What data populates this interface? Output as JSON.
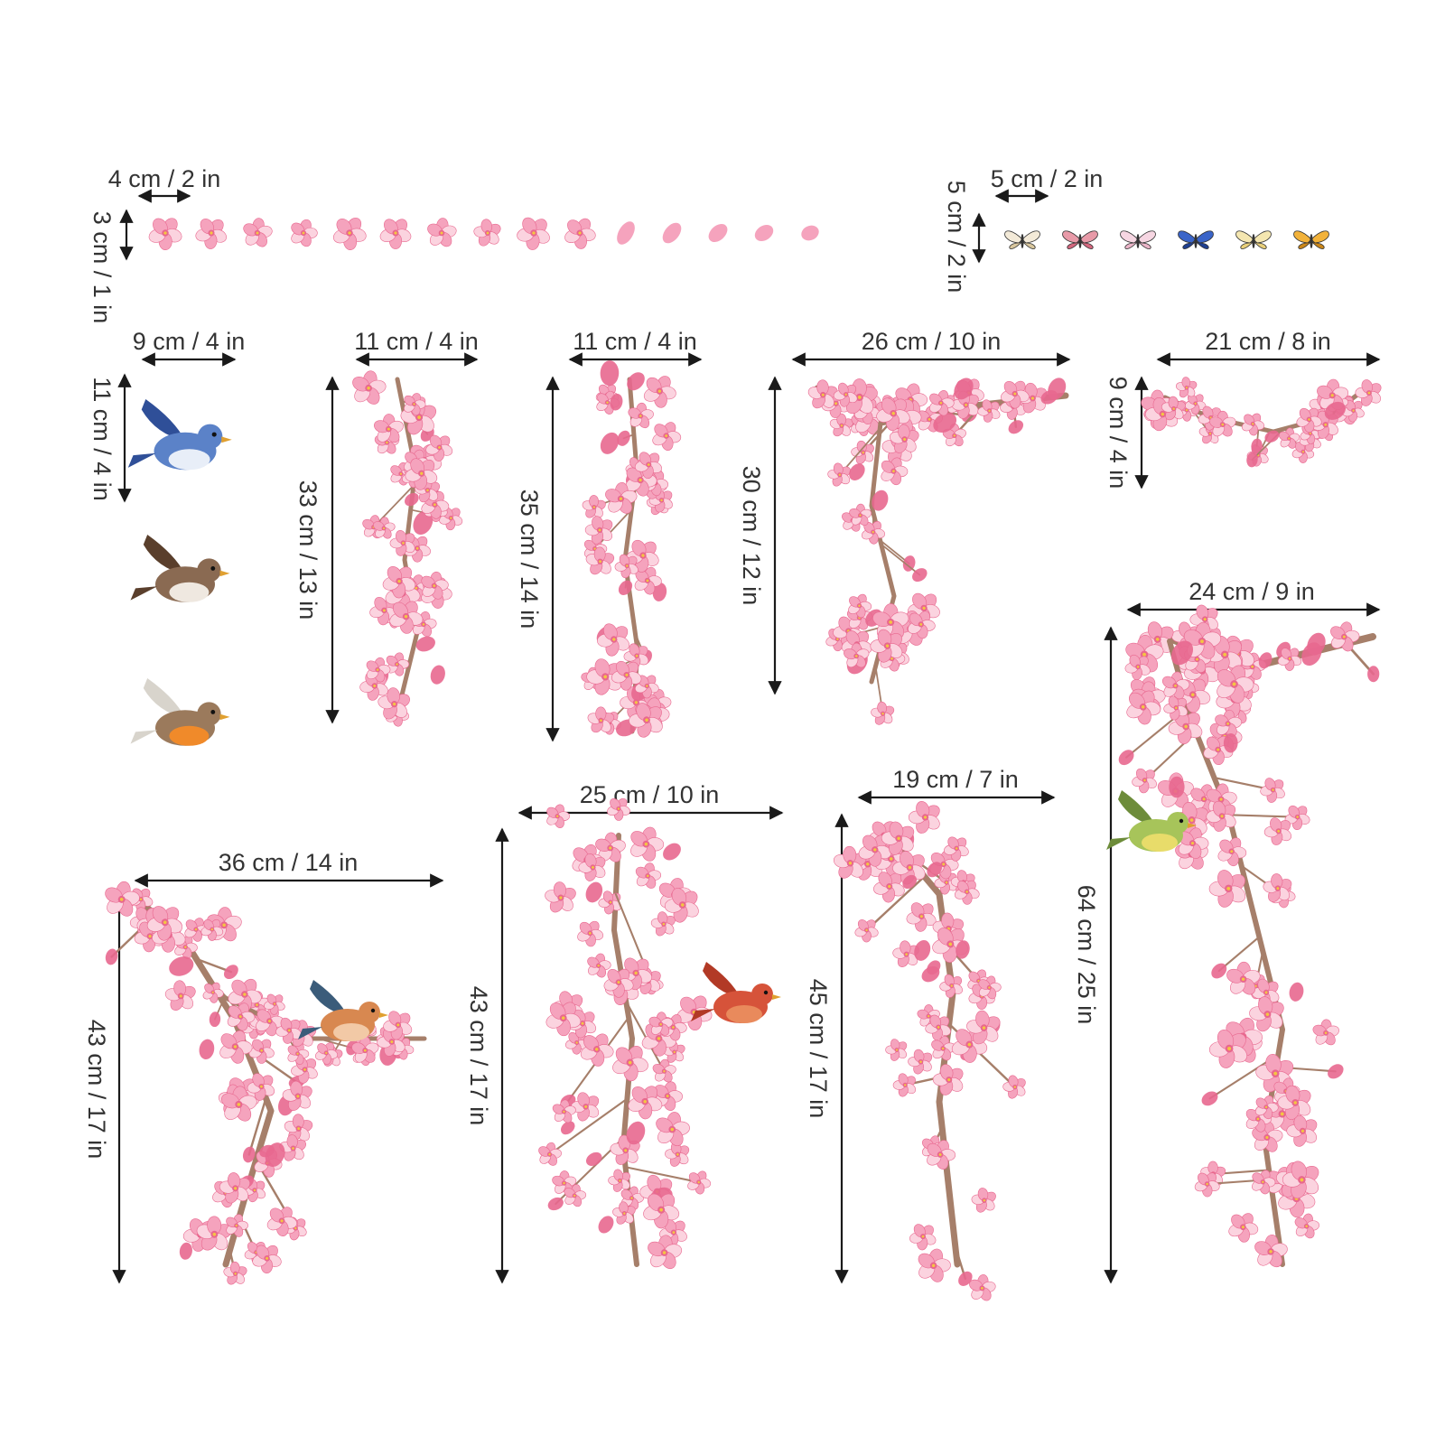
{
  "colors": {
    "background": "#ffffff",
    "text": "#333333",
    "arrow": "#1a1a1a",
    "petal_light": "#fbd3df",
    "petal": "#f5a3bd",
    "petal_deep": "#e8688f",
    "branch": "#a67f6a",
    "branch_dark": "#8a6552"
  },
  "sheets": [
    {
      "id": "petals",
      "width_label": "4 cm / 2 in",
      "height_label": "3 cm / 1 in",
      "pieces": 15
    },
    {
      "id": "butterflies",
      "width_label": "5 cm / 2 in",
      "height_label": "5 cm / 2 in",
      "pieces": 6
    },
    {
      "id": "birds",
      "width_label": "9 cm / 4 in",
      "height_label": "11 cm / 4 in",
      "pieces": 3
    },
    {
      "id": "branch-a",
      "width_label": "11 cm / 4 in",
      "height_label": "33 cm / 13 in"
    },
    {
      "id": "branch-b",
      "width_label": "11 cm / 4 in",
      "height_label": "35 cm / 14 in"
    },
    {
      "id": "branch-c",
      "width_label": "26 cm / 10 in",
      "height_label": "30 cm / 12 in"
    },
    {
      "id": "branch-d",
      "width_label": "21 cm / 8 in",
      "height_label": "9 cm / 4 in"
    },
    {
      "id": "branch-e",
      "width_label": "24 cm / 9 in",
      "height_label": "64 cm / 25 in"
    },
    {
      "id": "branch-f",
      "width_label": "36 cm / 14 in",
      "height_label": "43 cm / 17 in"
    },
    {
      "id": "branch-g",
      "width_label": "25 cm / 10 in",
      "height_label": "43 cm / 17 in"
    },
    {
      "id": "branch-h",
      "width_label": "19 cm / 7 in",
      "height_label": "45 cm / 17 in"
    }
  ]
}
